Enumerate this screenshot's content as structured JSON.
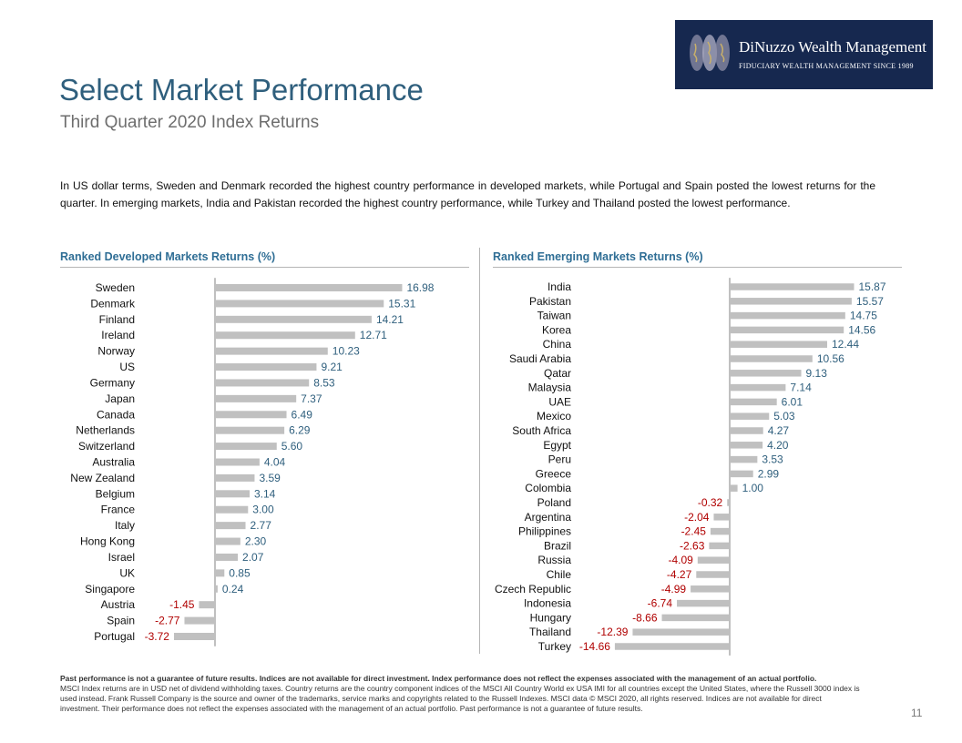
{
  "logo": {
    "name": "DiNuzzo Wealth Management",
    "tagline": "FIDUCIARY WEALTH MANAGEMENT SINCE 1989",
    "background": "#16284f"
  },
  "header": {
    "title": "Select Market Performance",
    "subtitle": "Third Quarter 2020 Index Returns"
  },
  "intro": "In US dollar terms, Sweden and Denmark recorded the highest country performance in developed markets, while Portugal and Spain posted the lowest returns for the quarter. In emerging markets, India and Pakistan recorded the highest country performance, while Turkey and Thailand posted the lowest performance.",
  "chart_data": [
    {
      "type": "bar",
      "orientation": "horizontal",
      "title": "Ranked Developed Markets Returns (%)",
      "categories": [
        "Sweden",
        "Denmark",
        "Finland",
        "Ireland",
        "Norway",
        "US",
        "Germany",
        "Japan",
        "Canada",
        "Netherlands",
        "Switzerland",
        "Australia",
        "New Zealand",
        "Belgium",
        "France",
        "Italy",
        "Hong Kong",
        "Israel",
        "UK",
        "Singapore",
        "Austria",
        "Spain",
        "Portugal"
      ],
      "values": [
        16.98,
        15.31,
        14.21,
        12.71,
        10.23,
        9.21,
        8.53,
        7.37,
        6.49,
        6.29,
        5.6,
        4.04,
        3.59,
        3.14,
        3.0,
        2.77,
        2.3,
        2.07,
        0.85,
        0.24,
        -1.45,
        -2.77,
        -3.72
      ],
      "labels": [
        "16.98",
        "15.31",
        "14.21",
        "12.71",
        "10.23",
        "9.21",
        "8.53",
        "7.37",
        "6.49",
        "6.29",
        "5.60",
        "4.04",
        "3.59",
        "3.14",
        "3.00",
        "2.77",
        "2.30",
        "2.07",
        "0.85",
        "0.24",
        "-1.45",
        "-2.77",
        "-3.72"
      ],
      "bar_color": "#c0c0c0",
      "positive_label_color": "#2f5f7d",
      "negative_label_color": "#b00000"
    },
    {
      "type": "bar",
      "orientation": "horizontal",
      "title": "Ranked Emerging Markets Returns (%)",
      "categories": [
        "India",
        "Pakistan",
        "Taiwan",
        "Korea",
        "China",
        "Saudi Arabia",
        "Qatar",
        "Malaysia",
        "UAE",
        "Mexico",
        "South Africa",
        "Egypt",
        "Peru",
        "Greece",
        "Colombia",
        "Poland",
        "Argentina",
        "Philippines",
        "Brazil",
        "Russia",
        "Chile",
        "Czech Republic",
        "Indonesia",
        "Hungary",
        "Thailand",
        "Turkey"
      ],
      "values": [
        15.87,
        15.57,
        14.75,
        14.56,
        12.44,
        10.56,
        9.13,
        7.14,
        6.01,
        5.03,
        4.27,
        4.2,
        3.53,
        2.99,
        1.0,
        -0.32,
        -2.04,
        -2.45,
        -2.63,
        -4.09,
        -4.27,
        -4.99,
        -6.74,
        -8.66,
        -12.39,
        -14.66
      ],
      "labels": [
        "15.87",
        "15.57",
        "14.75",
        "14.56",
        "12.44",
        "10.56",
        "9.13",
        "7.14",
        "6.01",
        "5.03",
        "4.27",
        "4.20",
        "3.53",
        "2.99",
        "1.00",
        "-0.32",
        "-2.04",
        "-2.45",
        "-2.63",
        "-4.09",
        "-4.27",
        "-4.99",
        "-6.74",
        "-8.66",
        "-12.39",
        "-14.66"
      ],
      "bar_color": "#c0c0c0",
      "positive_label_color": "#2f5f7d",
      "negative_label_color": "#b00000"
    }
  ],
  "disclaimer": {
    "bold": "Past performance is not a guarantee of future results. Indices are not available for direct investment. Index performance does not reflect the expenses associated with the management of an actual portfolio.",
    "body": "MSCI Index returns are in USD net of dividend withholding taxes. Country returns are the country component indices of the MSCI All Country World ex USA IMI for all countries except the United States, where the Russell 3000 index is used instead. Frank Russell Company is the source and owner of the trademarks, service marks and copyrights related to the Russell Indexes. MSCI data © MSCI 2020, all rights reserved. Indices are not available for direct investment. Their performance does not reflect the expenses associated with the management of an actual portfolio. Past performance is not a guarantee of future results."
  },
  "page_number": "11"
}
